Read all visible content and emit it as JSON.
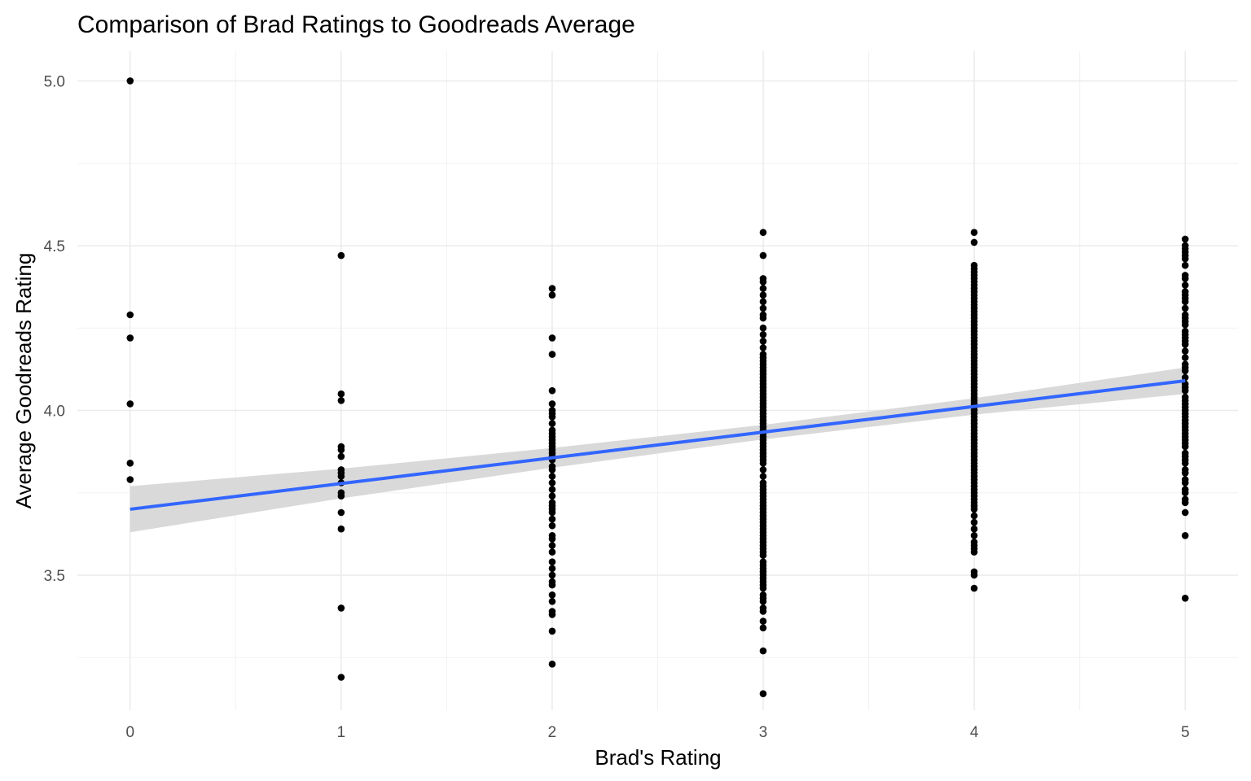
{
  "chart_data": {
    "type": "scatter",
    "title": "Comparison of Brad Ratings to Goodreads Average",
    "xlabel": "Brad's Rating",
    "ylabel": "Average Goodreads Rating",
    "xlim": [
      -0.25,
      5.25
    ],
    "ylim": [
      3.09,
      5.09
    ],
    "x_ticks": [
      0,
      1,
      2,
      3,
      4,
      5
    ],
    "x_tick_labels": [
      "0",
      "1",
      "2",
      "3",
      "4",
      "5"
    ],
    "y_ticks": [
      3.5,
      4.0,
      4.5,
      5.0
    ],
    "y_tick_labels": [
      "3.5",
      "4.0",
      "4.5",
      "5.0"
    ],
    "grid": true,
    "legend": "none",
    "point_color": "#000000",
    "fit_line": {
      "method": "linear",
      "color": "#3366FF",
      "band_color": "#D9D9D9",
      "start": [
        0,
        3.7
      ],
      "end": [
        5,
        4.09
      ],
      "band_halfwidth_at": [
        [
          0,
          0.07
        ],
        [
          1,
          0.045
        ],
        [
          2,
          0.03
        ],
        [
          3,
          0.022
        ],
        [
          4,
          0.025
        ],
        [
          5,
          0.04
        ]
      ]
    },
    "series": [
      {
        "points": [
          [
            0,
            5.0
          ],
          [
            0,
            4.29
          ],
          [
            0,
            4.22
          ],
          [
            0,
            4.02
          ],
          [
            0,
            3.84
          ],
          [
            0,
            3.79
          ],
          [
            1,
            4.47
          ],
          [
            1,
            4.05
          ],
          [
            1,
            4.03
          ],
          [
            1,
            3.89
          ],
          [
            1,
            3.88
          ],
          [
            1,
            3.86
          ],
          [
            1,
            3.82
          ],
          [
            1,
            3.81
          ],
          [
            1,
            3.8
          ],
          [
            1,
            3.78
          ],
          [
            1,
            3.75
          ],
          [
            1,
            3.74
          ],
          [
            1,
            3.69
          ],
          [
            1,
            3.64
          ],
          [
            1,
            3.4
          ],
          [
            1,
            3.19
          ],
          [
            2,
            4.37
          ],
          [
            2,
            4.35
          ],
          [
            2,
            4.22
          ],
          [
            2,
            4.17
          ],
          [
            2,
            4.06
          ],
          [
            2,
            4.02
          ],
          [
            2,
            4.0
          ],
          [
            2,
            3.99
          ],
          [
            2,
            3.98
          ],
          [
            2,
            3.96
          ],
          [
            2,
            3.94
          ],
          [
            2,
            3.93
          ],
          [
            2,
            3.92
          ],
          [
            2,
            3.91
          ],
          [
            2,
            3.9
          ],
          [
            2,
            3.89
          ],
          [
            2,
            3.88
          ],
          [
            2,
            3.87
          ],
          [
            2,
            3.86
          ],
          [
            2,
            3.85
          ],
          [
            2,
            3.83
          ],
          [
            2,
            3.82
          ],
          [
            2,
            3.8
          ],
          [
            2,
            3.78
          ],
          [
            2,
            3.76
          ],
          [
            2,
            3.74
          ],
          [
            2,
            3.72
          ],
          [
            2,
            3.71
          ],
          [
            2,
            3.7
          ],
          [
            2,
            3.69
          ],
          [
            2,
            3.67
          ],
          [
            2,
            3.65
          ],
          [
            2,
            3.62
          ],
          [
            2,
            3.61
          ],
          [
            2,
            3.59
          ],
          [
            2,
            3.57
          ],
          [
            2,
            3.54
          ],
          [
            2,
            3.52
          ],
          [
            2,
            3.5
          ],
          [
            2,
            3.48
          ],
          [
            2,
            3.47
          ],
          [
            2,
            3.44
          ],
          [
            2,
            3.42
          ],
          [
            2,
            3.39
          ],
          [
            2,
            3.38
          ],
          [
            2,
            3.33
          ],
          [
            2,
            3.23
          ],
          [
            3,
            4.54
          ],
          [
            3,
            4.47
          ],
          [
            3,
            4.4
          ],
          [
            3,
            4.39
          ],
          [
            3,
            4.37
          ],
          [
            3,
            4.35
          ],
          [
            3,
            4.33
          ],
          [
            3,
            4.31
          ],
          [
            3,
            4.29
          ],
          [
            3,
            4.28
          ],
          [
            3,
            4.25
          ],
          [
            3,
            4.23
          ],
          [
            3,
            4.21
          ],
          [
            3,
            4.19
          ],
          [
            3,
            4.17
          ],
          [
            3,
            4.16
          ],
          [
            3,
            4.15
          ],
          [
            3,
            4.14
          ],
          [
            3,
            4.13
          ],
          [
            3,
            4.12
          ],
          [
            3,
            4.11
          ],
          [
            3,
            4.1
          ],
          [
            3,
            4.09
          ],
          [
            3,
            4.08
          ],
          [
            3,
            4.07
          ],
          [
            3,
            4.06
          ],
          [
            3,
            4.05
          ],
          [
            3,
            4.04
          ],
          [
            3,
            4.03
          ],
          [
            3,
            4.02
          ],
          [
            3,
            4.01
          ],
          [
            3,
            4.0
          ],
          [
            3,
            3.99
          ],
          [
            3,
            3.98
          ],
          [
            3,
            3.97
          ],
          [
            3,
            3.96
          ],
          [
            3,
            3.95
          ],
          [
            3,
            3.94
          ],
          [
            3,
            3.93
          ],
          [
            3,
            3.92
          ],
          [
            3,
            3.91
          ],
          [
            3,
            3.9
          ],
          [
            3,
            3.89
          ],
          [
            3,
            3.88
          ],
          [
            3,
            3.87
          ],
          [
            3,
            3.86
          ],
          [
            3,
            3.85
          ],
          [
            3,
            3.84
          ],
          [
            3,
            3.82
          ],
          [
            3,
            3.8
          ],
          [
            3,
            3.78
          ],
          [
            3,
            3.77
          ],
          [
            3,
            3.76
          ],
          [
            3,
            3.75
          ],
          [
            3,
            3.74
          ],
          [
            3,
            3.73
          ],
          [
            3,
            3.72
          ],
          [
            3,
            3.71
          ],
          [
            3,
            3.7
          ],
          [
            3,
            3.69
          ],
          [
            3,
            3.68
          ],
          [
            3,
            3.67
          ],
          [
            3,
            3.66
          ],
          [
            3,
            3.65
          ],
          [
            3,
            3.64
          ],
          [
            3,
            3.63
          ],
          [
            3,
            3.62
          ],
          [
            3,
            3.61
          ],
          [
            3,
            3.6
          ],
          [
            3,
            3.59
          ],
          [
            3,
            3.58
          ],
          [
            3,
            3.57
          ],
          [
            3,
            3.56
          ],
          [
            3,
            3.54
          ],
          [
            3,
            3.53
          ],
          [
            3,
            3.52
          ],
          [
            3,
            3.51
          ],
          [
            3,
            3.5
          ],
          [
            3,
            3.49
          ],
          [
            3,
            3.48
          ],
          [
            3,
            3.47
          ],
          [
            3,
            3.46
          ],
          [
            3,
            3.44
          ],
          [
            3,
            3.43
          ],
          [
            3,
            3.42
          ],
          [
            3,
            3.4
          ],
          [
            3,
            3.39
          ],
          [
            3,
            3.36
          ],
          [
            3,
            3.34
          ],
          [
            3,
            3.27
          ],
          [
            3,
            3.14
          ],
          [
            4,
            4.54
          ],
          [
            4,
            4.51
          ],
          [
            4,
            4.44
          ],
          [
            4,
            4.43
          ],
          [
            4,
            4.42
          ],
          [
            4,
            4.41
          ],
          [
            4,
            4.4
          ],
          [
            4,
            4.39
          ],
          [
            4,
            4.38
          ],
          [
            4,
            4.37
          ],
          [
            4,
            4.36
          ],
          [
            4,
            4.35
          ],
          [
            4,
            4.34
          ],
          [
            4,
            4.33
          ],
          [
            4,
            4.32
          ],
          [
            4,
            4.31
          ],
          [
            4,
            4.3
          ],
          [
            4,
            4.29
          ],
          [
            4,
            4.28
          ],
          [
            4,
            4.27
          ],
          [
            4,
            4.26
          ],
          [
            4,
            4.25
          ],
          [
            4,
            4.24
          ],
          [
            4,
            4.23
          ],
          [
            4,
            4.22
          ],
          [
            4,
            4.21
          ],
          [
            4,
            4.2
          ],
          [
            4,
            4.19
          ],
          [
            4,
            4.18
          ],
          [
            4,
            4.17
          ],
          [
            4,
            4.16
          ],
          [
            4,
            4.15
          ],
          [
            4,
            4.14
          ],
          [
            4,
            4.13
          ],
          [
            4,
            4.12
          ],
          [
            4,
            4.11
          ],
          [
            4,
            4.1
          ],
          [
            4,
            4.09
          ],
          [
            4,
            4.08
          ],
          [
            4,
            4.07
          ],
          [
            4,
            4.06
          ],
          [
            4,
            4.05
          ],
          [
            4,
            4.04
          ],
          [
            4,
            4.03
          ],
          [
            4,
            4.02
          ],
          [
            4,
            4.01
          ],
          [
            4,
            4.0
          ],
          [
            4,
            3.99
          ],
          [
            4,
            3.98
          ],
          [
            4,
            3.97
          ],
          [
            4,
            3.96
          ],
          [
            4,
            3.95
          ],
          [
            4,
            3.94
          ],
          [
            4,
            3.93
          ],
          [
            4,
            3.92
          ],
          [
            4,
            3.91
          ],
          [
            4,
            3.9
          ],
          [
            4,
            3.89
          ],
          [
            4,
            3.88
          ],
          [
            4,
            3.87
          ],
          [
            4,
            3.86
          ],
          [
            4,
            3.85
          ],
          [
            4,
            3.84
          ],
          [
            4,
            3.83
          ],
          [
            4,
            3.82
          ],
          [
            4,
            3.81
          ],
          [
            4,
            3.8
          ],
          [
            4,
            3.79
          ],
          [
            4,
            3.78
          ],
          [
            4,
            3.77
          ],
          [
            4,
            3.76
          ],
          [
            4,
            3.75
          ],
          [
            4,
            3.74
          ],
          [
            4,
            3.73
          ],
          [
            4,
            3.72
          ],
          [
            4,
            3.71
          ],
          [
            4,
            3.7
          ],
          [
            4,
            3.68
          ],
          [
            4,
            3.66
          ],
          [
            4,
            3.64
          ],
          [
            4,
            3.62
          ],
          [
            4,
            3.6
          ],
          [
            4,
            3.59
          ],
          [
            4,
            3.58
          ],
          [
            4,
            3.57
          ],
          [
            4,
            3.51
          ],
          [
            4,
            3.5
          ],
          [
            4,
            3.46
          ],
          [
            5,
            4.52
          ],
          [
            5,
            4.5
          ],
          [
            5,
            4.49
          ],
          [
            5,
            4.48
          ],
          [
            5,
            4.47
          ],
          [
            5,
            4.46
          ],
          [
            5,
            4.44
          ],
          [
            5,
            4.41
          ],
          [
            5,
            4.4
          ],
          [
            5,
            4.38
          ],
          [
            5,
            4.36
          ],
          [
            5,
            4.35
          ],
          [
            5,
            4.34
          ],
          [
            5,
            4.33
          ],
          [
            5,
            4.31
          ],
          [
            5,
            4.29
          ],
          [
            5,
            4.28
          ],
          [
            5,
            4.27
          ],
          [
            5,
            4.26
          ],
          [
            5,
            4.24
          ],
          [
            5,
            4.23
          ],
          [
            5,
            4.22
          ],
          [
            5,
            4.21
          ],
          [
            5,
            4.2
          ],
          [
            5,
            4.18
          ],
          [
            5,
            4.16
          ],
          [
            5,
            4.14
          ],
          [
            5,
            4.13
          ],
          [
            5,
            4.12
          ],
          [
            5,
            4.1
          ],
          [
            5,
            4.08
          ],
          [
            5,
            4.07
          ],
          [
            5,
            4.06
          ],
          [
            5,
            4.04
          ],
          [
            5,
            4.03
          ],
          [
            5,
            4.02
          ],
          [
            5,
            4.01
          ],
          [
            5,
            4.0
          ],
          [
            5,
            3.99
          ],
          [
            5,
            3.98
          ],
          [
            5,
            3.97
          ],
          [
            5,
            3.96
          ],
          [
            5,
            3.95
          ],
          [
            5,
            3.94
          ],
          [
            5,
            3.93
          ],
          [
            5,
            3.92
          ],
          [
            5,
            3.91
          ],
          [
            5,
            3.9
          ],
          [
            5,
            3.89
          ],
          [
            5,
            3.87
          ],
          [
            5,
            3.86
          ],
          [
            5,
            3.85
          ],
          [
            5,
            3.84
          ],
          [
            5,
            3.82
          ],
          [
            5,
            3.81
          ],
          [
            5,
            3.79
          ],
          [
            5,
            3.78
          ],
          [
            5,
            3.76
          ],
          [
            5,
            3.75
          ],
          [
            5,
            3.73
          ],
          [
            5,
            3.72
          ],
          [
            5,
            3.69
          ],
          [
            5,
            3.62
          ],
          [
            5,
            3.43
          ]
        ]
      }
    ]
  }
}
